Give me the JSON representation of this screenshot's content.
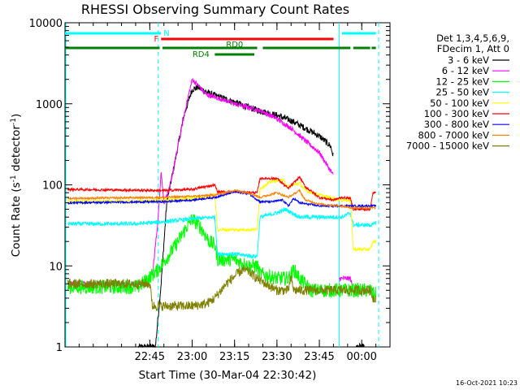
{
  "chart_data": {
    "type": "line",
    "title": "RHESSI Observing Summary Count Rates",
    "xlabel": "Start Time (30-Mar-04 22:30:42)",
    "ylabel_main": "Count Rate (s",
    "ylabel_sup1": "-1",
    "ylabel_mid": " detector",
    "ylabel_sup2": "-1",
    "ylabel_end": ")",
    "ylog": true,
    "ylim": [
      1,
      10000
    ],
    "xlim_minutes": [
      -15,
      100
    ],
    "x_ticks": [
      {
        "label": "22:45",
        "m": 15
      },
      {
        "label": "23:00",
        "m": 30
      },
      {
        "label": "23:15",
        "m": 45
      },
      {
        "label": "23:30",
        "m": 60
      },
      {
        "label": "23:45",
        "m": 75
      },
      {
        "label": "00:00",
        "m": 90
      }
    ],
    "y_ticks": [
      {
        "label": "1",
        "v": 1
      },
      {
        "label": "10",
        "v": 10
      },
      {
        "label": "100",
        "v": 100
      },
      {
        "label": "1000",
        "v": 1000
      },
      {
        "label": "10000",
        "v": 10000
      }
    ],
    "legend_header": [
      "Det 1,3,4,5,6,9,",
      "FDecim 1, Att 0"
    ],
    "timestamp": "16-Oct-2021 10:23",
    "flags": [
      {
        "label": "N",
        "color": "#00ffff",
        "segments": [
          [
            -15,
            19
          ],
          [
            83,
            95
          ]
        ]
      },
      {
        "label": "F",
        "color": "#ff0000",
        "segments": [
          [
            19,
            80
          ]
        ]
      },
      {
        "label": "RD0",
        "color": "#008000",
        "segments": [
          [
            -15,
            18.5
          ],
          [
            19.5,
            53
          ],
          [
            55,
            86
          ],
          [
            87,
            93
          ],
          [
            93.5,
            95
          ]
        ]
      },
      {
        "label": "RD4",
        "color": "#008000",
        "segments": [
          [
            38,
            52
          ]
        ]
      }
    ],
    "night_lines": [
      {
        "m": 18,
        "style": "dashed"
      },
      {
        "m": 82,
        "style": "solid"
      },
      {
        "m": 96,
        "style": "dashed"
      }
    ],
    "series": [
      {
        "name": "3 - 6 keV",
        "color": "#000000",
        "noise": 0.08,
        "points": [
          [
            11,
            1
          ],
          [
            14,
            1
          ],
          [
            17,
            1
          ],
          [
            19,
            6
          ],
          [
            21,
            60
          ],
          [
            24,
            200
          ],
          [
            27,
            700
          ],
          [
            30,
            1500
          ],
          [
            32,
            1600
          ],
          [
            36,
            1350
          ],
          [
            40,
            1200
          ],
          [
            45,
            1050
          ],
          [
            50,
            900
          ],
          [
            55,
            800
          ],
          [
            60,
            720
          ],
          [
            65,
            620
          ],
          [
            70,
            500
          ],
          [
            75,
            400
          ],
          [
            79,
            300
          ],
          [
            80,
            220
          ],
          [
            82,
            null
          ],
          [
            88,
            1
          ],
          [
            91,
            1
          ]
        ]
      },
      {
        "name": "6 - 12 keV",
        "color": "#ff00ff",
        "noise": 0.06,
        "points": [
          [
            -14,
            6
          ],
          [
            14,
            6
          ],
          [
            16,
            8
          ],
          [
            18,
            40
          ],
          [
            19,
            150
          ],
          [
            20,
            60
          ],
          [
            22,
            90
          ],
          [
            25,
            300
          ],
          [
            28,
            1000
          ],
          [
            30,
            2000
          ],
          [
            32,
            1700
          ],
          [
            35,
            1300
          ],
          [
            40,
            1150
          ],
          [
            45,
            1000
          ],
          [
            50,
            900
          ],
          [
            55,
            800
          ],
          [
            60,
            650
          ],
          [
            65,
            500
          ],
          [
            70,
            350
          ],
          [
            75,
            250
          ],
          [
            80,
            130
          ],
          [
            81,
            null
          ],
          [
            82,
            7
          ],
          [
            86,
            7
          ],
          [
            87,
            5
          ],
          [
            94,
            5
          ]
        ]
      },
      {
        "name": "12 - 25 keV",
        "color": "#00ff00",
        "noise": 0.18,
        "points": [
          [
            -14,
            5.5
          ],
          [
            11,
            5.5
          ],
          [
            18,
            9
          ],
          [
            22,
            14
          ],
          [
            25,
            20
          ],
          [
            28,
            30
          ],
          [
            30,
            38
          ],
          [
            33,
            30
          ],
          [
            36,
            20
          ],
          [
            38,
            18
          ],
          [
            39,
            12
          ],
          [
            45,
            12
          ],
          [
            50,
            10
          ],
          [
            53,
            10
          ],
          [
            54,
            8
          ],
          [
            60,
            7
          ],
          [
            64,
            7
          ],
          [
            66,
            9
          ],
          [
            68,
            7
          ],
          [
            72,
            5
          ],
          [
            80,
            5
          ],
          [
            83,
            5
          ],
          [
            87,
            5
          ],
          [
            93,
            5
          ],
          [
            94,
            4.5
          ],
          [
            95,
            4.5
          ]
        ]
      },
      {
        "name": "25 - 50 keV",
        "color": "#00ffff",
        "noise": 0.05,
        "points": [
          [
            -14,
            33
          ],
          [
            10,
            33
          ],
          [
            20,
            35
          ],
          [
            30,
            38
          ],
          [
            38,
            40
          ],
          [
            39,
            14
          ],
          [
            45,
            14
          ],
          [
            53,
            13
          ],
          [
            54,
            40
          ],
          [
            60,
            45
          ],
          [
            63,
            50
          ],
          [
            68,
            40
          ],
          [
            75,
            40
          ],
          [
            80,
            40
          ],
          [
            83,
            40
          ],
          [
            86,
            45
          ],
          [
            87,
            32
          ],
          [
            94,
            32
          ],
          [
            95,
            35
          ]
        ]
      },
      {
        "name": "50 - 100 keV",
        "color": "#ffff00",
        "noise": 0.04,
        "points": [
          [
            -14,
            62
          ],
          [
            10,
            62
          ],
          [
            30,
            68
          ],
          [
            38,
            75
          ],
          [
            39,
            28
          ],
          [
            53,
            28
          ],
          [
            54,
            90
          ],
          [
            58,
            110
          ],
          [
            62,
            115
          ],
          [
            64,
            95
          ],
          [
            68,
            105
          ],
          [
            70,
            85
          ],
          [
            75,
            75
          ],
          [
            80,
            68
          ],
          [
            83,
            65
          ],
          [
            86,
            65
          ],
          [
            87,
            16
          ],
          [
            93,
            16
          ],
          [
            94,
            20
          ],
          [
            95,
            20
          ]
        ]
      },
      {
        "name": "100 - 300 keV",
        "color": "#ff0000",
        "noise": 0.03,
        "points": [
          [
            -14,
            88
          ],
          [
            20,
            85
          ],
          [
            30,
            88
          ],
          [
            38,
            100
          ],
          [
            39,
            82
          ],
          [
            45,
            82
          ],
          [
            53,
            80
          ],
          [
            54,
            120
          ],
          [
            60,
            120
          ],
          [
            64,
            90
          ],
          [
            68,
            125
          ],
          [
            70,
            95
          ],
          [
            75,
            70
          ],
          [
            80,
            65
          ],
          [
            83,
            70
          ],
          [
            86,
            68
          ],
          [
            87,
            50
          ],
          [
            93,
            50
          ],
          [
            94,
            80
          ],
          [
            95,
            80
          ]
        ]
      },
      {
        "name": "300 - 800 keV",
        "color": "#0000ff",
        "noise": 0.025,
        "points": [
          [
            -14,
            60
          ],
          [
            20,
            62
          ],
          [
            30,
            65
          ],
          [
            38,
            70
          ],
          [
            45,
            82
          ],
          [
            50,
            78
          ],
          [
            54,
            62
          ],
          [
            58,
            62
          ],
          [
            62,
            65
          ],
          [
            64,
            55
          ],
          [
            66,
            68
          ],
          [
            68,
            60
          ],
          [
            75,
            55
          ],
          [
            82,
            55
          ],
          [
            87,
            55
          ],
          [
            95,
            55
          ]
        ]
      },
      {
        "name": "800 - 7000 keV",
        "color": "#ff8000",
        "noise": 0.025,
        "points": [
          [
            -14,
            68
          ],
          [
            20,
            70
          ],
          [
            30,
            72
          ],
          [
            38,
            75
          ],
          [
            45,
            85
          ],
          [
            50,
            80
          ],
          [
            54,
            70
          ],
          [
            60,
            80
          ],
          [
            64,
            70
          ],
          [
            68,
            85
          ],
          [
            70,
            65
          ],
          [
            75,
            58
          ],
          [
            82,
            55
          ],
          [
            87,
            52
          ],
          [
            95,
            52
          ]
        ]
      },
      {
        "name": "7000 - 15000 keV",
        "color": "#808000",
        "noise": 0.12,
        "points": [
          [
            -14,
            6
          ],
          [
            15,
            6
          ],
          [
            16,
            3.2
          ],
          [
            30,
            3.2
          ],
          [
            35,
            3.4
          ],
          [
            38,
            4
          ],
          [
            42,
            6
          ],
          [
            46,
            8
          ],
          [
            48,
            9
          ],
          [
            50,
            8.5
          ],
          [
            53,
            7
          ],
          [
            56,
            6
          ],
          [
            60,
            5
          ],
          [
            64,
            5
          ],
          [
            65,
            7
          ],
          [
            66,
            5
          ],
          [
            72,
            5
          ],
          [
            80,
            5
          ],
          [
            83,
            5
          ],
          [
            87,
            5
          ],
          [
            93,
            5
          ],
          [
            94,
            4
          ],
          [
            95,
            4
          ]
        ]
      }
    ]
  }
}
